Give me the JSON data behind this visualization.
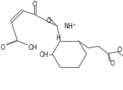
{
  "bg": "#ffffff",
  "lc": "#7f7f7f",
  "tc": "#1a1a1a",
  "figsize": [
    1.55,
    1.15
  ],
  "dpi": 100,
  "xlim": [
    0,
    155
  ],
  "ylim": [
    115,
    0
  ],
  "lw": 0.9
}
